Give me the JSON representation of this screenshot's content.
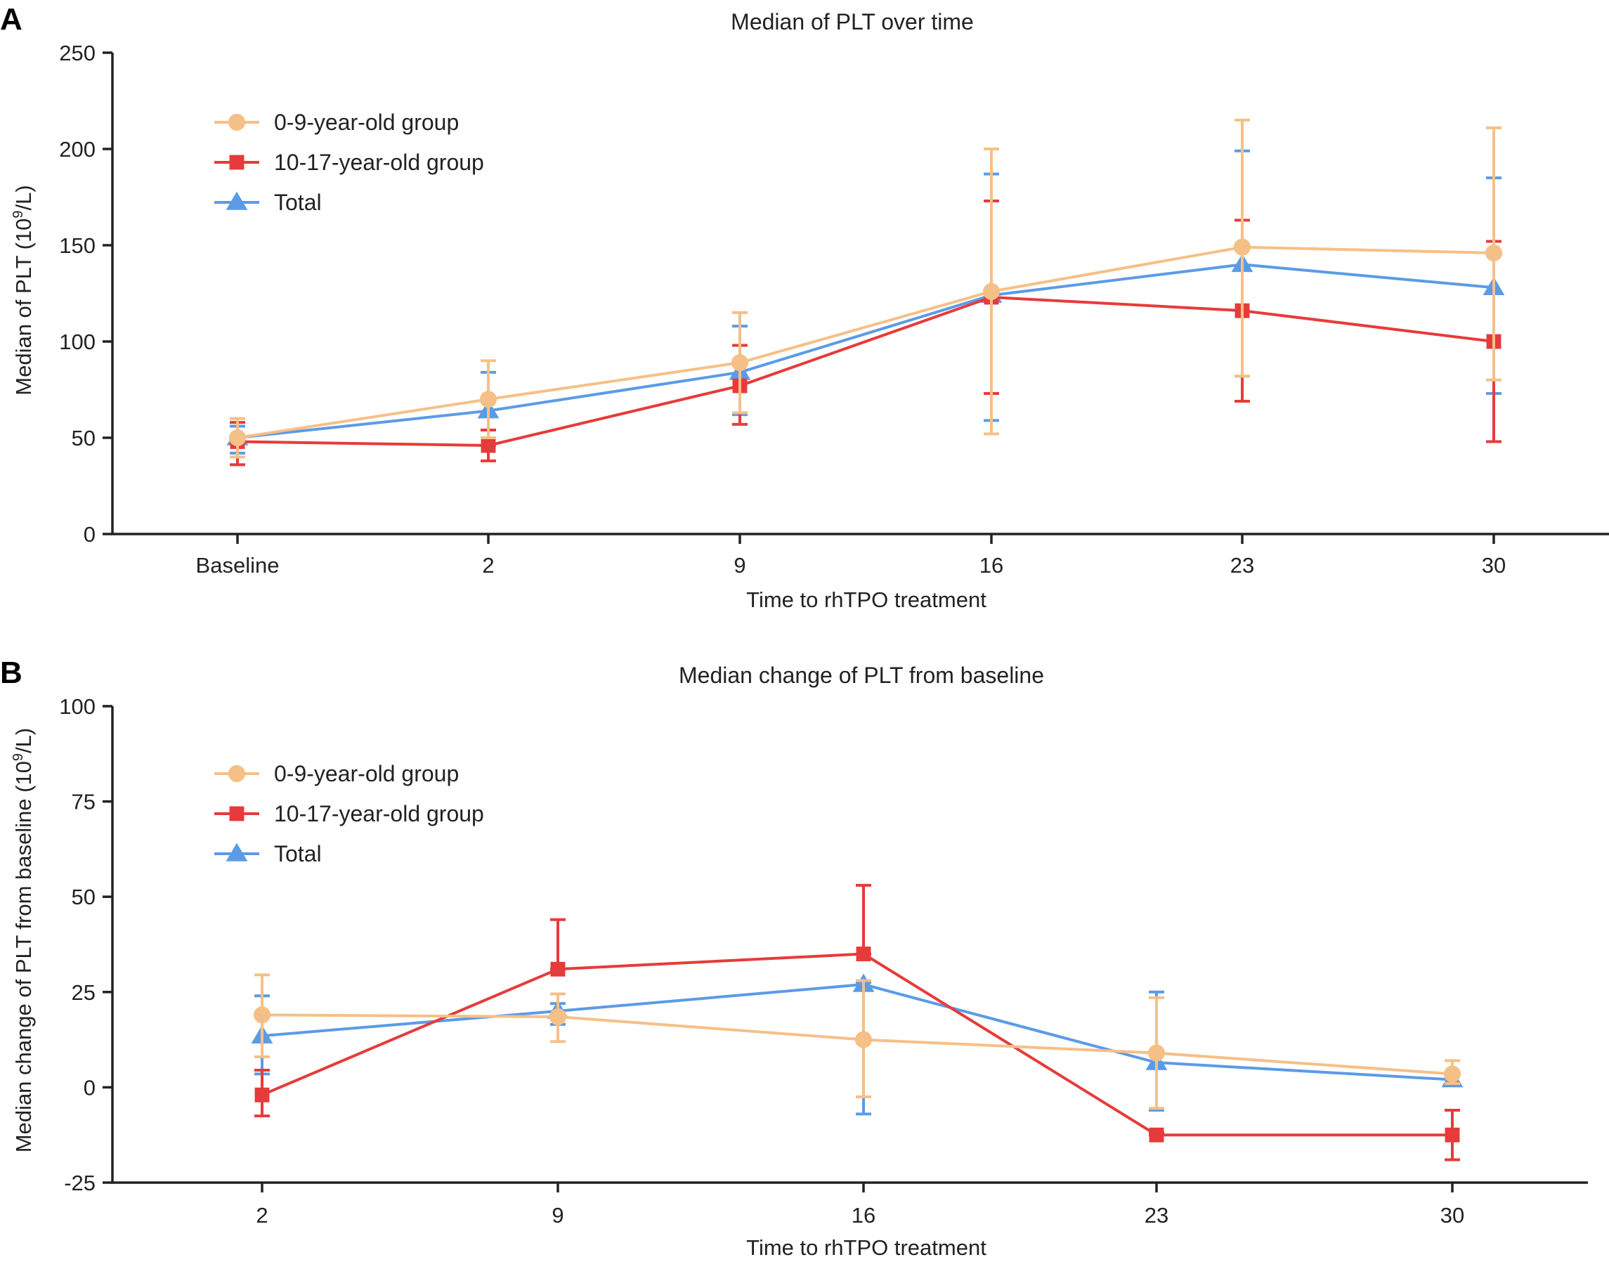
{
  "colors": {
    "group_0_9": "#F5C087",
    "group_10_17": "#E63B3B",
    "total": "#5B9BE6",
    "axis": "#222222"
  },
  "chart_data": [
    {
      "type": "line",
      "panel": "A",
      "title": "Median of PLT over time",
      "xlabel": "Time to rhTPO treatment",
      "ylabel": "Median of PLT (10⁹/L)",
      "categories": [
        "Baseline",
        "2",
        "9",
        "16",
        "23",
        "30"
      ],
      "ylim": [
        0,
        250
      ],
      "yticks": [
        "0",
        "50",
        "100",
        "150",
        "200",
        "250"
      ],
      "legend_position": "top-left",
      "series": [
        {
          "name": "0-9-year-old group",
          "marker": "circle",
          "color": "#F5C087",
          "values": [
            50,
            70,
            89,
            126,
            149,
            146
          ],
          "err_high": [
            60,
            90,
            115,
            200,
            215,
            211
          ],
          "err_low": [
            40,
            50,
            63,
            52,
            82,
            80
          ]
        },
        {
          "name": "10-17-year-old group",
          "marker": "square",
          "color": "#E63B3B",
          "values": [
            48,
            46,
            77,
            123,
            116,
            100
          ],
          "err_high": [
            58,
            54,
            98,
            173,
            163,
            152
          ],
          "err_low": [
            36,
            38,
            57,
            73,
            69,
            48
          ]
        },
        {
          "name": "Total",
          "marker": "triangle",
          "color": "#5B9BE6",
          "values": [
            50,
            64,
            84,
            124,
            140,
            128
          ],
          "err_high": [
            56,
            84,
            108,
            187,
            199,
            185
          ],
          "err_low": [
            42,
            46,
            62,
            59,
            82,
            73
          ]
        }
      ]
    },
    {
      "type": "line",
      "panel": "B",
      "title": "Median change of PLT from baseline",
      "xlabel": "Time to rhTPO treatment",
      "ylabel": "Median change of PLT from baseline (10⁹/L)",
      "categories": [
        "2",
        "9",
        "16",
        "23",
        "30"
      ],
      "ylim": [
        -25,
        100
      ],
      "yticks": [
        "-25",
        "0",
        "25",
        "50",
        "75",
        "100"
      ],
      "legend_position": "top-left",
      "series": [
        {
          "name": "0-9-year-old group",
          "marker": "circle",
          "color": "#F5C087",
          "values": [
            19,
            18.5,
            12.5,
            9,
            3.5
          ],
          "err_high": [
            29.5,
            24.5,
            28,
            23.5,
            7
          ],
          "err_low": [
            8,
            12,
            -2.5,
            -5.5,
            1
          ]
        },
        {
          "name": "10-17-year-old group",
          "marker": "square",
          "color": "#E63B3B",
          "values": [
            -2,
            31,
            35,
            -12.5,
            -12.5
          ],
          "err_high": [
            4.5,
            44,
            53,
            -12,
            -6
          ],
          "err_low": [
            -7.5,
            31,
            35,
            -12.5,
            -19
          ]
        },
        {
          "name": "Total",
          "marker": "triangle",
          "color": "#5B9BE6",
          "values": [
            13.5,
            20,
            27,
            6.5,
            2
          ],
          "err_high": [
            24,
            22,
            27.5,
            25,
            3
          ],
          "err_low": [
            3.5,
            16.5,
            -7,
            -6,
            0.5
          ]
        }
      ]
    }
  ]
}
